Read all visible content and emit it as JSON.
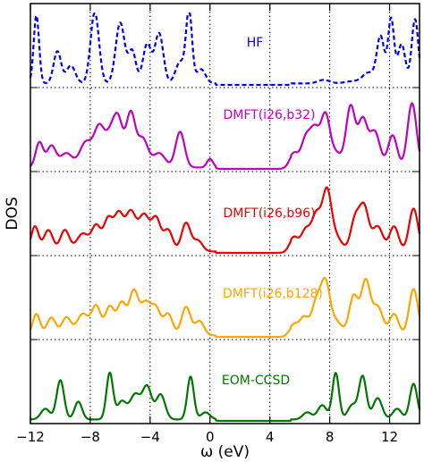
{
  "chart_data": {
    "type": "line",
    "xlabel": "ω (eV)",
    "ylabel": "DOS",
    "xlim": [
      -12,
      14
    ],
    "x_ticks": [
      -12,
      -8,
      -4,
      0,
      4,
      8,
      12
    ],
    "x_tick_labels": [
      "−12",
      "−8",
      "−4",
      "0",
      "4",
      "8",
      "12"
    ],
    "grid": "dotted",
    "panels_stacked": true,
    "series": [
      {
        "name": "HF",
        "color": "#0000ee",
        "line_style": "dashed",
        "peaks": [
          [
            -11.6,
            0.95,
            0.18
          ],
          [
            -10.2,
            0.45,
            0.25
          ],
          [
            -9.3,
            0.25,
            0.3
          ],
          [
            -7.7,
            1.0,
            0.28
          ],
          [
            -6.0,
            0.85,
            0.3
          ],
          [
            -5.2,
            0.45,
            0.25
          ],
          [
            -4.2,
            0.55,
            0.28
          ],
          [
            -3.4,
            0.7,
            0.28
          ],
          [
            -2.0,
            0.3,
            0.3
          ],
          [
            -1.4,
            1.0,
            0.2
          ],
          [
            -0.6,
            0.2,
            0.3
          ],
          [
            7.6,
            0.05,
            0.4
          ],
          [
            9.5,
            0.03,
            0.5
          ],
          [
            10.6,
            0.15,
            0.4
          ],
          [
            11.4,
            0.65,
            0.25
          ],
          [
            12.1,
            0.9,
            0.2
          ],
          [
            12.8,
            0.55,
            0.25
          ],
          [
            13.7,
            0.9,
            0.22
          ]
        ],
        "baseline": 0.02
      },
      {
        "name": "DMFT(i26,b32)",
        "color": "#bf00bf",
        "line_style": "solid",
        "peaks": [
          [
            -11.4,
            0.35,
            0.25
          ],
          [
            -10.6,
            0.3,
            0.3
          ],
          [
            -9.6,
            0.2,
            0.4
          ],
          [
            -8.3,
            0.35,
            0.4
          ],
          [
            -7.4,
            0.55,
            0.35
          ],
          [
            -6.6,
            0.45,
            0.35
          ],
          [
            -6.1,
            0.55,
            0.3
          ],
          [
            -5.3,
            0.75,
            0.3
          ],
          [
            -4.5,
            0.4,
            0.35
          ],
          [
            -3.4,
            0.2,
            0.4
          ],
          [
            -2.0,
            0.5,
            0.3
          ],
          [
            0.0,
            0.12,
            0.2
          ],
          [
            5.6,
            0.2,
            0.3
          ],
          [
            6.4,
            0.4,
            0.3
          ],
          [
            7.0,
            0.5,
            0.3
          ],
          [
            7.7,
            0.7,
            0.3
          ],
          [
            8.4,
            0.2,
            0.4
          ],
          [
            9.4,
            0.85,
            0.3
          ],
          [
            10.2,
            0.65,
            0.3
          ],
          [
            11.0,
            0.5,
            0.35
          ],
          [
            12.2,
            0.45,
            0.3
          ],
          [
            13.5,
            0.9,
            0.3
          ]
        ],
        "baseline": 0.02
      },
      {
        "name": "DMFT(i26,b96)",
        "color": "#ee0000",
        "line_style": "solid",
        "peaks": [
          [
            -11.7,
            0.35,
            0.25
          ],
          [
            -10.8,
            0.3,
            0.3
          ],
          [
            -9.7,
            0.3,
            0.3
          ],
          [
            -8.5,
            0.25,
            0.4
          ],
          [
            -7.6,
            0.35,
            0.3
          ],
          [
            -6.8,
            0.45,
            0.3
          ],
          [
            -6.1,
            0.5,
            0.3
          ],
          [
            -5.3,
            0.55,
            0.35
          ],
          [
            -4.4,
            0.5,
            0.35
          ],
          [
            -3.6,
            0.45,
            0.3
          ],
          [
            -2.8,
            0.3,
            0.3
          ],
          [
            -1.6,
            0.4,
            0.3
          ],
          [
            -0.8,
            0.15,
            0.3
          ],
          [
            5.6,
            0.2,
            0.3
          ],
          [
            6.4,
            0.3,
            0.3
          ],
          [
            7.1,
            0.5,
            0.3
          ],
          [
            7.8,
            0.8,
            0.3
          ],
          [
            8.4,
            0.2,
            0.4
          ],
          [
            9.7,
            0.45,
            0.3
          ],
          [
            10.3,
            0.6,
            0.3
          ],
          [
            11.2,
            0.35,
            0.35
          ],
          [
            12.3,
            0.35,
            0.3
          ],
          [
            13.6,
            0.6,
            0.3
          ]
        ],
        "baseline": 0.02
      },
      {
        "name": "DMFT(i26,b128)",
        "color": "#ffa500",
        "line_style": "solid",
        "peaks": [
          [
            -11.6,
            0.3,
            0.25
          ],
          [
            -10.6,
            0.25,
            0.3
          ],
          [
            -9.6,
            0.25,
            0.3
          ],
          [
            -8.5,
            0.3,
            0.4
          ],
          [
            -7.6,
            0.4,
            0.3
          ],
          [
            -6.7,
            0.4,
            0.3
          ],
          [
            -5.9,
            0.45,
            0.3
          ],
          [
            -5.1,
            0.6,
            0.3
          ],
          [
            -4.3,
            0.45,
            0.35
          ],
          [
            -3.6,
            0.35,
            0.3
          ],
          [
            -2.8,
            0.3,
            0.3
          ],
          [
            -1.6,
            0.4,
            0.3
          ],
          [
            -0.7,
            0.2,
            0.3
          ],
          [
            5.6,
            0.15,
            0.3
          ],
          [
            6.3,
            0.25,
            0.3
          ],
          [
            7.1,
            0.45,
            0.3
          ],
          [
            7.7,
            0.7,
            0.3
          ],
          [
            8.4,
            0.2,
            0.4
          ],
          [
            9.6,
            0.55,
            0.3
          ],
          [
            10.4,
            0.75,
            0.3
          ],
          [
            11.2,
            0.4,
            0.35
          ],
          [
            12.3,
            0.3,
            0.3
          ],
          [
            13.6,
            0.65,
            0.3
          ]
        ],
        "baseline": 0.02
      },
      {
        "name": "EOM-CCSD",
        "color": "#007700",
        "line_style": "solid",
        "peaks": [
          [
            -11.0,
            0.15,
            0.3
          ],
          [
            -10.0,
            0.55,
            0.25
          ],
          [
            -8.8,
            0.25,
            0.25
          ],
          [
            -6.7,
            0.65,
            0.22
          ],
          [
            -5.9,
            0.25,
            0.3
          ],
          [
            -5.0,
            0.35,
            0.35
          ],
          [
            -4.2,
            0.45,
            0.3
          ],
          [
            -3.3,
            0.35,
            0.3
          ],
          [
            -1.3,
            0.6,
            0.22
          ],
          [
            -0.3,
            0.1,
            0.3
          ],
          [
            6.5,
            0.1,
            0.3
          ],
          [
            7.5,
            0.2,
            0.3
          ],
          [
            8.4,
            0.65,
            0.22
          ],
          [
            9.5,
            0.2,
            0.3
          ],
          [
            10.2,
            0.6,
            0.25
          ],
          [
            11.2,
            0.3,
            0.3
          ],
          [
            12.5,
            0.15,
            0.3
          ],
          [
            13.6,
            0.5,
            0.25
          ]
        ],
        "baseline": 0.02
      }
    ],
    "gap": [
      0.4,
      5.4
    ]
  },
  "legend_labels": [
    "HF",
    "DMFT(i26,b32)",
    "DMFT(i26,b96)",
    "DMFT(i26,b128)",
    "EOM-CCSD"
  ]
}
